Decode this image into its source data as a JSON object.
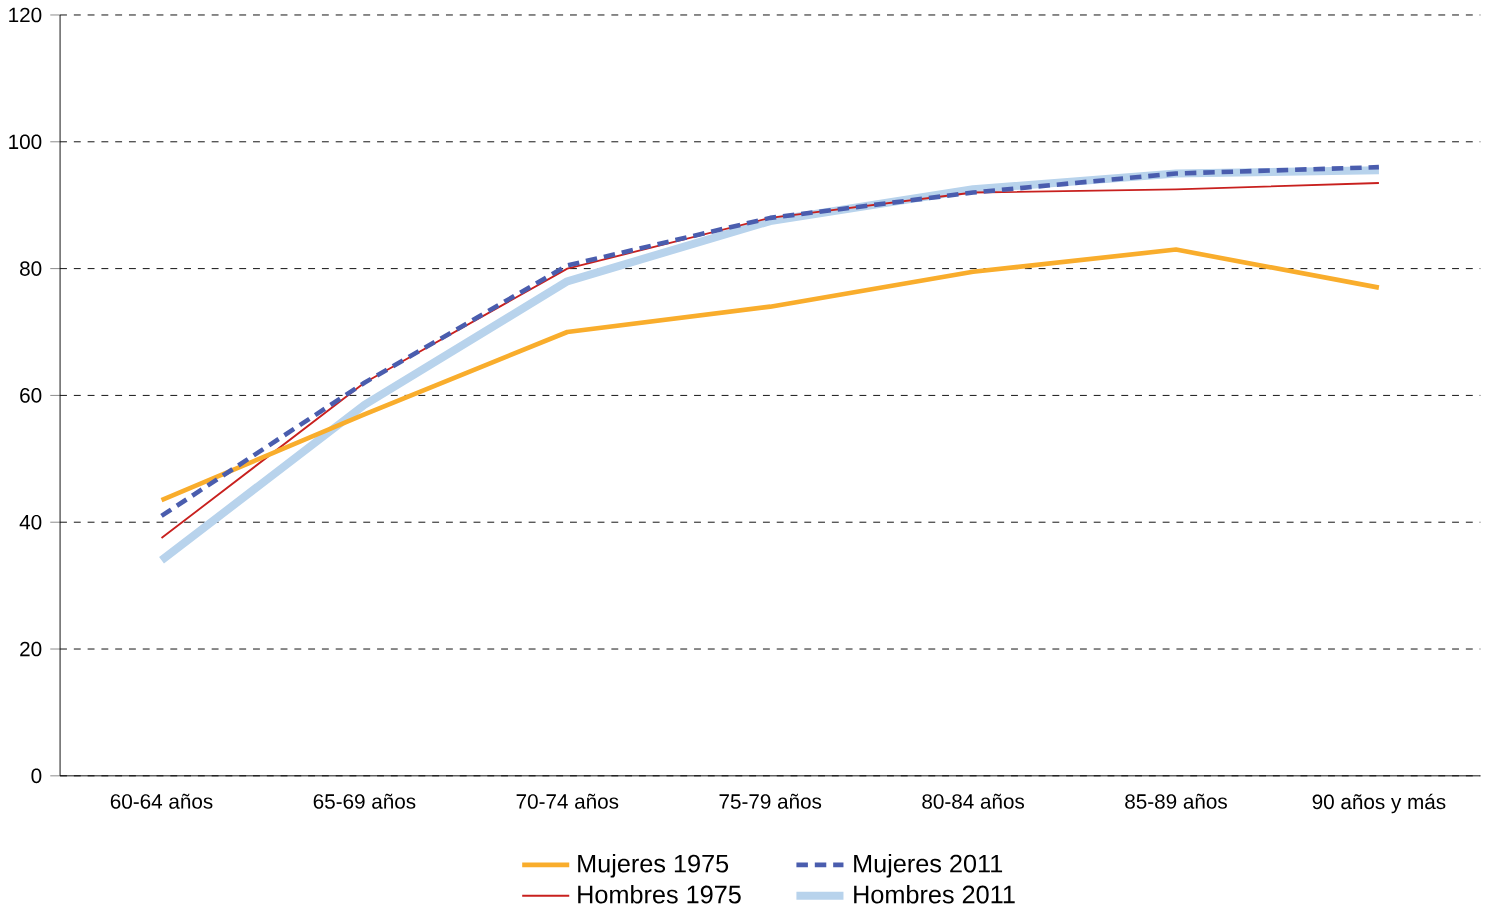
{
  "chart_data": {
    "type": "line",
    "categories": [
      "60-64 años",
      "65-69 años",
      "70-74 años",
      "75-79 años",
      "80-84 años",
      "85-89 años",
      "90 años y más"
    ],
    "series": [
      {
        "name": "Mujeres 1975",
        "color": "#f9ad2c",
        "line_style": "solid",
        "values": [
          43.5,
          57,
          70,
          74,
          79.5,
          83,
          77
        ]
      },
      {
        "name": "Hombres 1975",
        "color": "#c8201e",
        "line_style": "solid",
        "values": [
          37.5,
          62,
          80,
          88,
          92,
          92.5,
          93.5
        ]
      },
      {
        "name": "Mujeres 2011",
        "color": "#4a5dae",
        "line_style": "dashed",
        "values": [
          41,
          62,
          80.5,
          88,
          92,
          95,
          96
        ]
      },
      {
        "name": "Hombres 2011",
        "color": "#b8d3ec",
        "line_style": "solid",
        "values": [
          34,
          58.5,
          78,
          87.5,
          92.5,
          95,
          95.5
        ]
      }
    ],
    "ylim": [
      0,
      120
    ],
    "yticks": [
      0,
      20,
      40,
      60,
      80,
      100,
      120
    ],
    "grid": "y",
    "legend": "bottom",
    "marker": "none"
  }
}
